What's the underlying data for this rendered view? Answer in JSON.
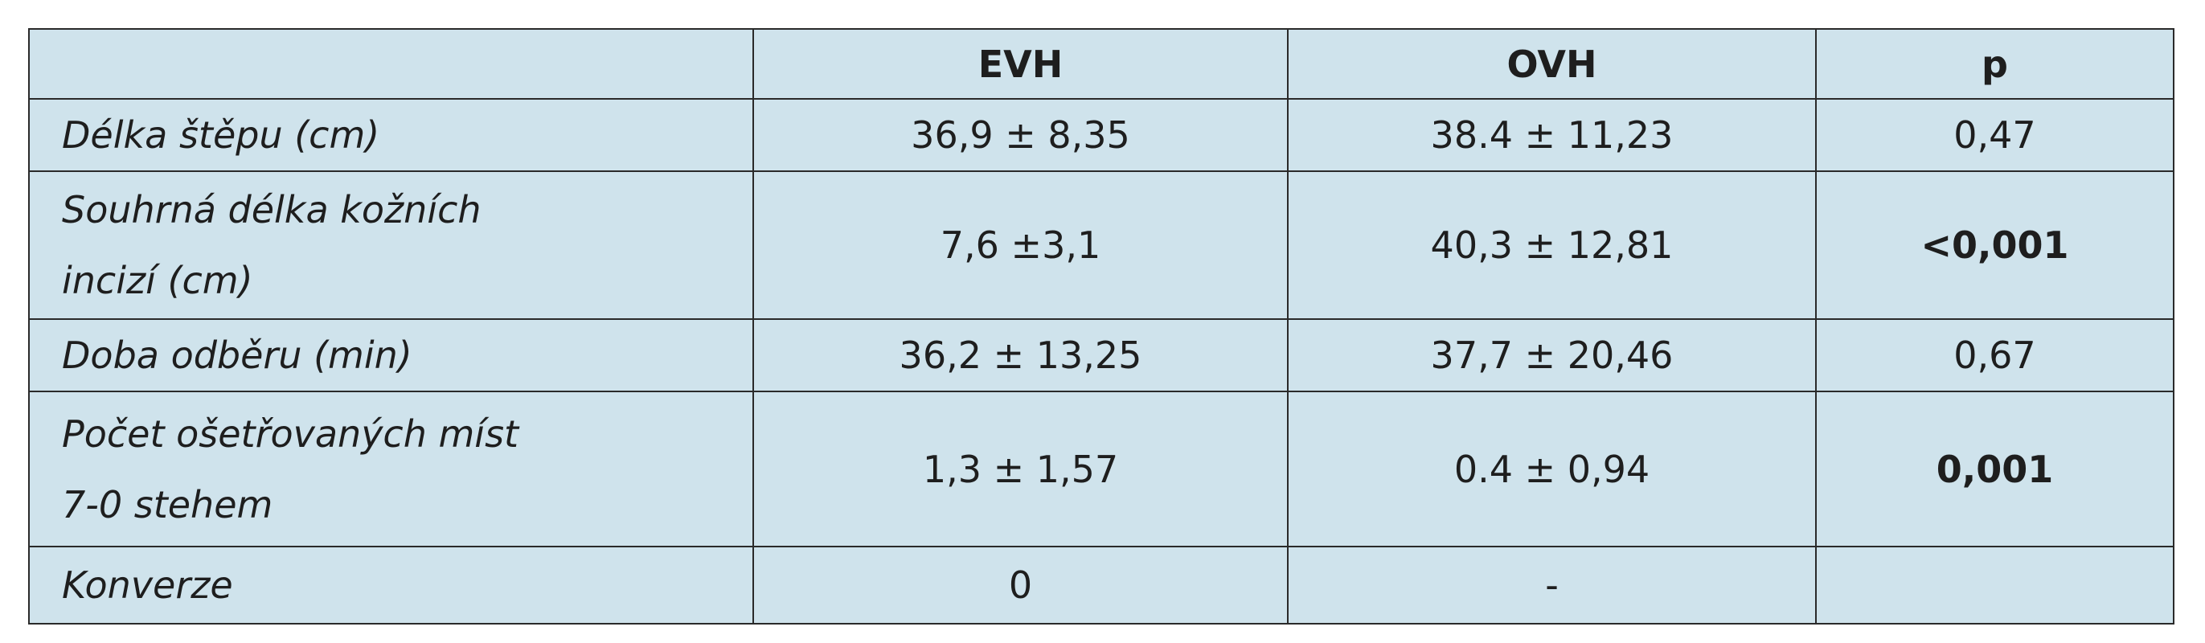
{
  "table": {
    "columns": [
      "EVH",
      "OVH",
      "p"
    ],
    "rows": [
      {
        "label": [
          "Délka štěpu (cm)"
        ],
        "cells": [
          "36,9 ± 8,35",
          "38.4 ± 11,23",
          "0,47"
        ]
      },
      {
        "label": [
          "Souhrná délka kožních",
          "incizí (cm)"
        ],
        "cells": [
          "7,6 ±3,1",
          "40,3 ± 12,81",
          "<0,001"
        ]
      },
      {
        "label": [
          "Doba odběru (min)"
        ],
        "cells": [
          "36,2 ± 13,25",
          "37,7 ± 20,46",
          "0,67"
        ]
      },
      {
        "label": [
          "Počet ošetřovaných míst",
          "7-0 stehem"
        ],
        "cells": [
          "1,3 ± 1,57",
          "0.4 ± 0,94",
          "0,001"
        ]
      },
      {
        "label": [
          "Konverze"
        ],
        "cells": [
          "0",
          "-"
        ]
      }
    ]
  }
}
